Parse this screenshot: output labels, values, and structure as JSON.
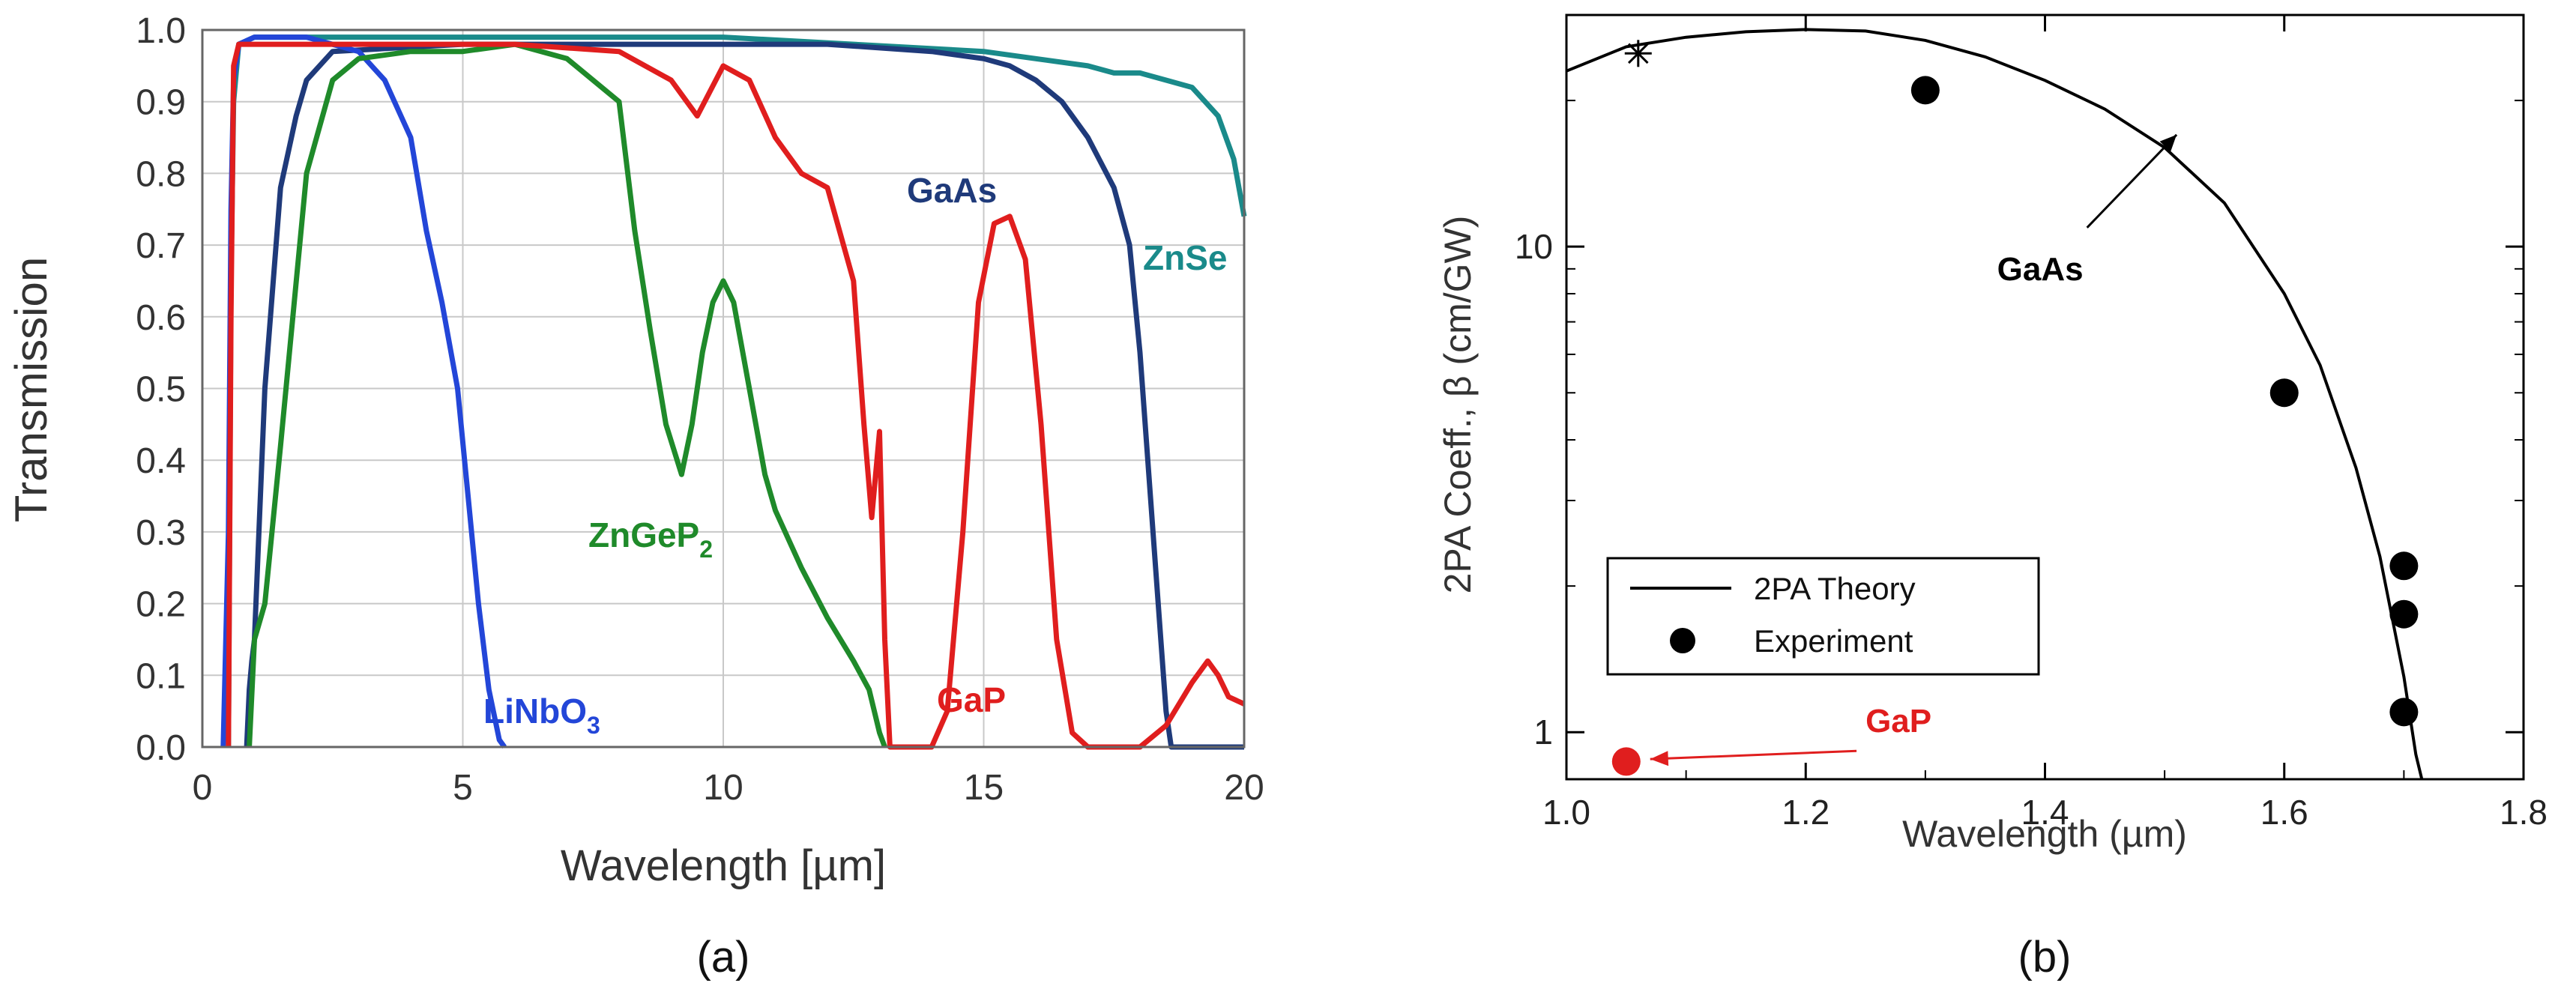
{
  "chart_data": [
    {
      "type": "line",
      "panel_label": "(a)",
      "xlabel": "Wavelength [µm]",
      "ylabel": "Transmission",
      "xlim": [
        0,
        20
      ],
      "ylim": [
        0,
        1.0
      ],
      "xticks": [
        "0",
        "5",
        "10",
        "15",
        "20"
      ],
      "yticks": [
        "0.0",
        "0.1",
        "0.2",
        "0.3",
        "0.4",
        "0.5",
        "0.6",
        "0.7",
        "0.8",
        "0.9",
        "1.0"
      ],
      "grid": true,
      "series": [
        {
          "name": "ZnSe",
          "color": "#1a8a8a",
          "x": [
            0.5,
            0.52,
            0.55,
            0.6,
            0.7,
            1,
            2,
            5,
            10,
            15,
            16,
            17,
            17.5,
            18,
            18.5,
            19,
            19.5,
            19.8,
            20
          ],
          "y": [
            0.0,
            0.25,
            0.65,
            0.9,
            0.98,
            0.99,
            0.99,
            0.99,
            0.99,
            0.97,
            0.96,
            0.95,
            0.94,
            0.94,
            0.93,
            0.92,
            0.88,
            0.82,
            0.74
          ]
        },
        {
          "name": "GaAs",
          "color": "#1f3a7a",
          "x": [
            0.85,
            0.9,
            0.95,
            1.0,
            1.2,
            1.5,
            1.8,
            2.0,
            2.5,
            5,
            8,
            12,
            14,
            15,
            15.5,
            16,
            16.5,
            17,
            17.5,
            17.8,
            18,
            18.2,
            18.4,
            18.5,
            18.6,
            20
          ],
          "y": [
            0.0,
            0.08,
            0.12,
            0.15,
            0.5,
            0.78,
            0.88,
            0.93,
            0.97,
            0.98,
            0.98,
            0.98,
            0.97,
            0.96,
            0.95,
            0.93,
            0.9,
            0.85,
            0.78,
            0.7,
            0.55,
            0.35,
            0.15,
            0.05,
            0.0,
            0.0
          ]
        },
        {
          "name": "LiNbO3",
          "color": "#2346d8",
          "x": [
            0.4,
            0.5,
            0.55,
            0.6,
            0.7,
            1.0,
            2.0,
            3.0,
            3.5,
            4.0,
            4.3,
            4.6,
            4.9,
            5.1,
            5.3,
            5.5,
            5.7,
            5.8
          ],
          "y": [
            0.0,
            0.3,
            0.75,
            0.93,
            0.98,
            0.99,
            0.99,
            0.97,
            0.93,
            0.85,
            0.72,
            0.62,
            0.5,
            0.35,
            0.2,
            0.08,
            0.01,
            0.0
          ]
        },
        {
          "name": "ZnGeP2",
          "color": "#1f8a2a",
          "x": [
            0.9,
            1.0,
            1.2,
            1.5,
            2.0,
            2.5,
            3.0,
            4.0,
            5.0,
            6.0,
            7.0,
            8.0,
            8.3,
            8.6,
            8.9,
            9.2,
            9.4,
            9.6,
            9.8,
            10.0,
            10.2,
            10.5,
            10.8,
            11.0,
            11.5,
            12.0,
            12.5,
            12.8,
            13.0,
            13.1
          ],
          "y": [
            0.0,
            0.15,
            0.2,
            0.42,
            0.8,
            0.93,
            0.96,
            0.97,
            0.97,
            0.98,
            0.96,
            0.9,
            0.72,
            0.58,
            0.45,
            0.38,
            0.45,
            0.55,
            0.62,
            0.65,
            0.62,
            0.5,
            0.38,
            0.33,
            0.25,
            0.18,
            0.12,
            0.08,
            0.02,
            0.0
          ]
        },
        {
          "name": "GaP",
          "color": "#e01e1e",
          "x": [
            0.5,
            0.55,
            0.6,
            0.7,
            1.0,
            3,
            6,
            8,
            9,
            9.5,
            10,
            10.5,
            11,
            11.5,
            12.0,
            12.5,
            12.7,
            12.85,
            13.0,
            13.1,
            13.2,
            13.4,
            13.7,
            14.0,
            14.3,
            14.6,
            14.9,
            15.2,
            15.5,
            15.8,
            16.1,
            16.4,
            16.7,
            17.0,
            18.0,
            18.5,
            19.0,
            19.3,
            19.5,
            19.7,
            20
          ],
          "y": [
            0.0,
            0.6,
            0.95,
            0.98,
            0.98,
            0.98,
            0.98,
            0.97,
            0.93,
            0.88,
            0.95,
            0.93,
            0.85,
            0.8,
            0.78,
            0.65,
            0.45,
            0.32,
            0.44,
            0.15,
            0.0,
            0.0,
            0.0,
            0.0,
            0.05,
            0.3,
            0.62,
            0.73,
            0.74,
            0.68,
            0.45,
            0.15,
            0.02,
            0.0,
            0.0,
            0.03,
            0.09,
            0.12,
            0.1,
            0.07,
            0.06
          ]
        }
      ]
    },
    {
      "type": "line",
      "panel_label": "(b)",
      "xlabel": "Wavelength (µm)",
      "ylabel": "2PA Coeff., β (cm/GW)",
      "xlim": [
        1.0,
        1.8
      ],
      "ylim": [
        0.8,
        30
      ],
      "yscale": "log",
      "xticks": [
        "1.0",
        "1.2",
        "1.4",
        "1.6",
        "1.8"
      ],
      "yticks": [
        "1",
        "10"
      ],
      "grid": false,
      "series": [
        {
          "name": "2PA Theory",
          "color": "#000000",
          "x": [
            1.0,
            1.05,
            1.1,
            1.15,
            1.2,
            1.25,
            1.3,
            1.35,
            1.4,
            1.45,
            1.5,
            1.55,
            1.6,
            1.63,
            1.66,
            1.68,
            1.7,
            1.71,
            1.715
          ],
          "y": [
            23.0,
            25.8,
            27.0,
            27.7,
            28.0,
            27.8,
            26.6,
            24.6,
            22.0,
            19.2,
            16.0,
            12.3,
            8.0,
            5.7,
            3.5,
            2.3,
            1.3,
            0.9,
            0.75
          ]
        },
        {
          "name": "Experiment",
          "color": "#000000",
          "marker": "circle",
          "x": [
            1.3,
            1.6,
            1.7,
            1.7,
            1.7
          ],
          "y": [
            21.0,
            5.0,
            2.2,
            1.75,
            1.1
          ]
        },
        {
          "name": "GaAs star",
          "color": "#000000",
          "marker": "star",
          "x": [
            1.06
          ],
          "y": [
            25.0
          ]
        },
        {
          "name": "GaP point",
          "color": "#e01e1e",
          "marker": "circle",
          "x": [
            1.05
          ],
          "y": [
            0.87
          ]
        }
      ],
      "annotations": [
        {
          "text": "GaAs",
          "color": "#000000",
          "x": 1.36,
          "y": 9.0,
          "arrow_to": [
            1.51,
            17.0
          ]
        },
        {
          "text": "GaP",
          "color": "#e01e1e",
          "x": 1.25,
          "y": 1.0,
          "arrow_to": [
            1.07,
            0.88
          ]
        }
      ],
      "legend": {
        "position": "bottom-left",
        "entries": [
          "2PA Theory",
          "Experiment"
        ]
      }
    }
  ],
  "labels_a": {
    "ZnSe": "ZnSe",
    "GaAs": "GaAs",
    "LiNbO3": "LiNbO",
    "LiNbO3_sub": "3",
    "ZnGeP2": "ZnGeP",
    "ZnGeP2_sub": "2",
    "GaP": "GaP"
  }
}
